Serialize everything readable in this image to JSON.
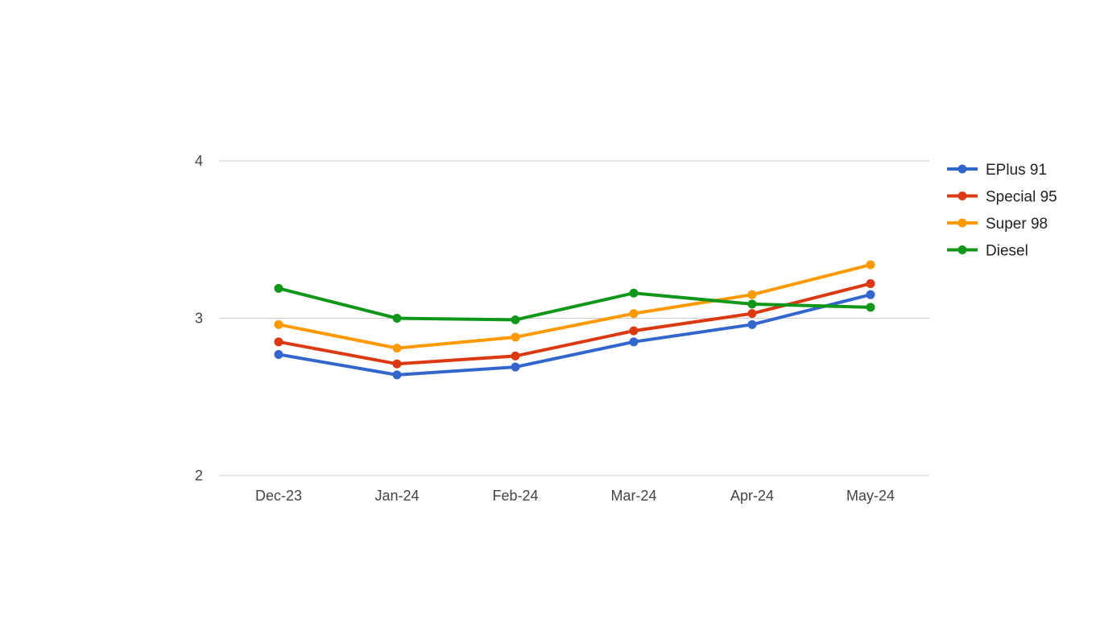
{
  "chart_data": {
    "type": "line",
    "title": "",
    "xlabel": "",
    "ylabel": "",
    "categories": [
      "Dec-23",
      "Jan-24",
      "Feb-24",
      "Mar-24",
      "Apr-24",
      "May-24"
    ],
    "ylim": [
      2,
      4
    ],
    "yticks": [
      "2",
      "3",
      "4"
    ],
    "grid": true,
    "legend_position": "right",
    "series": [
      {
        "name": "EPlus 91",
        "color": "#3366cc",
        "values": [
          2.77,
          2.64,
          2.69,
          2.85,
          2.96,
          3.15
        ]
      },
      {
        "name": "Special 95",
        "color": "#dc3912",
        "values": [
          2.85,
          2.71,
          2.76,
          2.92,
          3.03,
          3.22
        ]
      },
      {
        "name": "Super 98",
        "color": "#ff9900",
        "values": [
          2.96,
          2.81,
          2.88,
          3.03,
          3.15,
          3.34
        ]
      },
      {
        "name": "Diesel",
        "color": "#109618",
        "values": [
          3.19,
          3.0,
          2.99,
          3.16,
          3.09,
          3.07
        ]
      }
    ]
  }
}
